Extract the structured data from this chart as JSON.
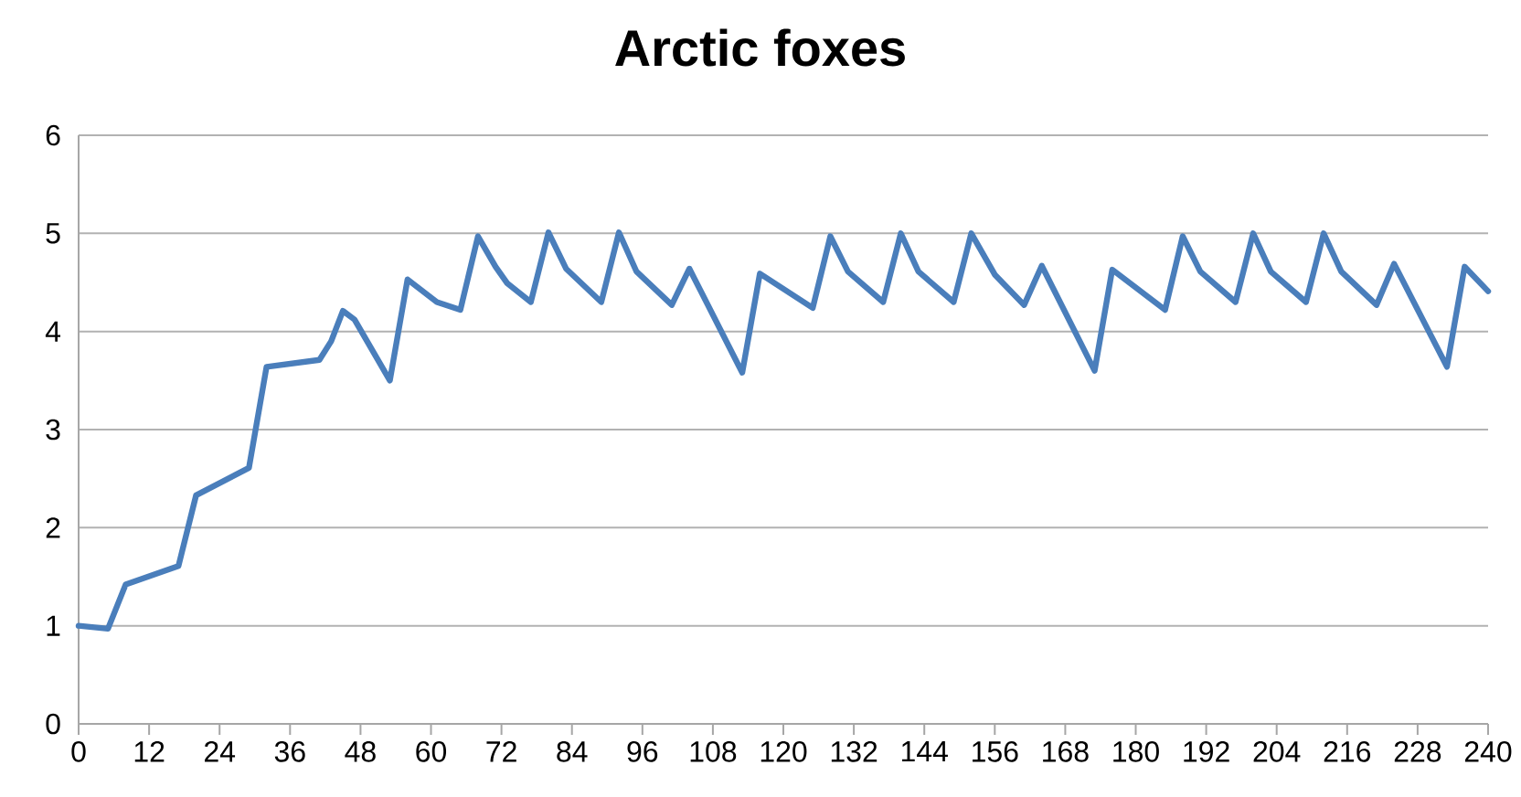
{
  "chart_data": {
    "type": "line",
    "title": "Arctic foxes",
    "x": [
      0,
      5,
      8,
      17,
      20,
      29,
      32,
      41,
      43,
      45,
      47,
      53,
      56,
      61,
      65,
      68,
      71,
      73,
      77,
      80,
      83,
      89,
      92,
      95,
      101,
      104,
      113,
      116,
      125,
      128,
      131,
      137,
      140,
      143,
      149,
      152,
      156,
      161,
      164,
      173,
      176,
      185,
      188,
      191,
      197,
      200,
      203,
      209,
      212,
      215,
      221,
      224,
      233,
      236,
      240
    ],
    "series": [
      {
        "color": "#4a7ebb",
        "values": [
          1.0,
          0.97,
          1.42,
          1.61,
          2.33,
          2.61,
          3.64,
          3.71,
          3.9,
          4.21,
          4.12,
          3.5,
          4.53,
          4.3,
          4.22,
          4.97,
          4.66,
          4.49,
          4.3,
          5.01,
          4.64,
          4.3,
          5.01,
          4.61,
          4.27,
          4.64,
          3.58,
          4.59,
          4.24,
          4.97,
          4.61,
          4.3,
          5.0,
          4.61,
          4.3,
          5.0,
          4.58,
          4.27,
          4.67,
          3.6,
          4.63,
          4.22,
          4.97,
          4.61,
          4.3,
          5.0,
          4.61,
          4.3,
          5.0,
          4.61,
          4.27,
          4.69,
          3.64,
          4.66,
          4.41
        ]
      }
    ],
    "xlim": [
      0,
      240
    ],
    "ylim": [
      0,
      6
    ],
    "xticks": [
      0,
      12,
      24,
      36,
      48,
      60,
      72,
      84,
      96,
      108,
      120,
      132,
      144,
      156,
      168,
      180,
      192,
      204,
      216,
      228,
      240
    ],
    "yticks": [
      0,
      1,
      2,
      3,
      4,
      5,
      6
    ],
    "grid": "y",
    "marker": "none",
    "line_style": "solid"
  }
}
